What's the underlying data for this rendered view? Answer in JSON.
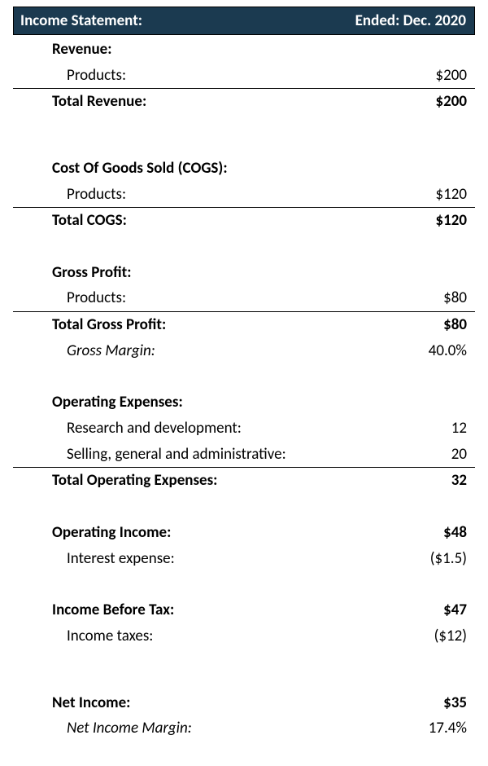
{
  "header": {
    "title": "Income Statement:",
    "period": "Ended: Dec. 2020",
    "bg_color": "#1b3a50",
    "text_color": "#ffffff"
  },
  "font": {
    "family": "Calibri",
    "size_pt": 14
  },
  "colors": {
    "page_bg": "#ffffff",
    "text": "#000000",
    "rule": "#000000"
  },
  "revenue": {
    "heading": "Revenue:",
    "lines": [
      {
        "label": "Products:",
        "value": "$200"
      }
    ],
    "total_label": "Total Revenue:",
    "total_value": "$200"
  },
  "cogs": {
    "heading": "Cost Of Goods Sold (COGS):",
    "lines": [
      {
        "label": "Products:",
        "value": "$120"
      }
    ],
    "total_label": "Total COGS:",
    "total_value": "$120"
  },
  "gross_profit": {
    "heading": "Gross Profit:",
    "lines": [
      {
        "label": "Products:",
        "value": "$80"
      }
    ],
    "total_label": "Total Gross Profit:",
    "total_value": "$80",
    "margin_label": "Gross Margin:",
    "margin_value": "40.0%"
  },
  "opex": {
    "heading": "Operating Expenses:",
    "lines": [
      {
        "label": "Research and development:",
        "value": "12"
      },
      {
        "label": "Selling, general and administrative:",
        "value": "20"
      }
    ],
    "total_label": "Total Operating Expenses:",
    "total_value": "32"
  },
  "operating_income": {
    "label": "Operating Income:",
    "value": "$48",
    "sub_label": "Interest expense:",
    "sub_value": "($1.5)"
  },
  "pretax": {
    "label": "Income Before Tax:",
    "value": "$47",
    "sub_label": "Income taxes:",
    "sub_value": "($12)"
  },
  "net_income": {
    "label": "Net Income:",
    "value": "$35",
    "margin_label": "Net Income Margin:",
    "margin_value": "17.4%"
  }
}
